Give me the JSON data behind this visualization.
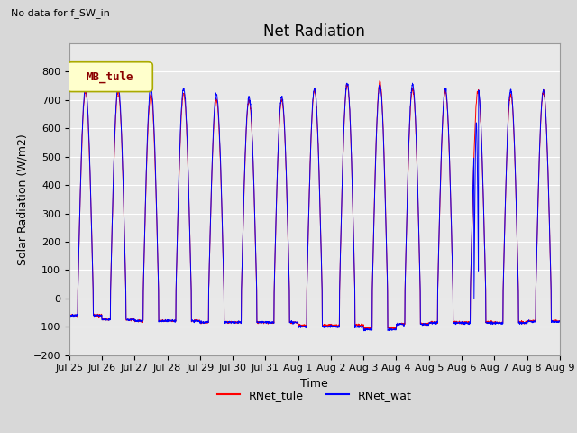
{
  "title": "Net Radiation",
  "top_left_text": "No data for f_SW_in",
  "xlabel": "Time",
  "ylabel": "Solar Radiation (W/m2)",
  "ylim": [
    -200,
    900
  ],
  "yticks": [
    -200,
    -100,
    0,
    100,
    200,
    300,
    400,
    500,
    600,
    700,
    800
  ],
  "background_color": "#d8d8d8",
  "axes_bg_color": "#e8e8e8",
  "grid_color": "white",
  "line1_color": "red",
  "line2_color": "blue",
  "line1_label": "RNet_tule",
  "line2_label": "RNet_wat",
  "legend_box_color": "#ffffcc",
  "legend_box_label": "MB_tule",
  "legend_box_edge_color": "#aaaa00",
  "num_days": 15,
  "points_per_day": 144,
  "date_labels": [
    "Jul 25",
    "Jul 26",
    "Jul 27",
    "Jul 28",
    "Jul 29",
    "Jul 30",
    "Jul 31",
    "Aug 1",
    "Aug 2",
    "Aug 3",
    "Aug 4",
    "Aug 5",
    "Aug 6",
    "Aug 7",
    "Aug 8",
    "Aug 9"
  ],
  "title_fontsize": 12,
  "label_fontsize": 9,
  "tick_fontsize": 8
}
